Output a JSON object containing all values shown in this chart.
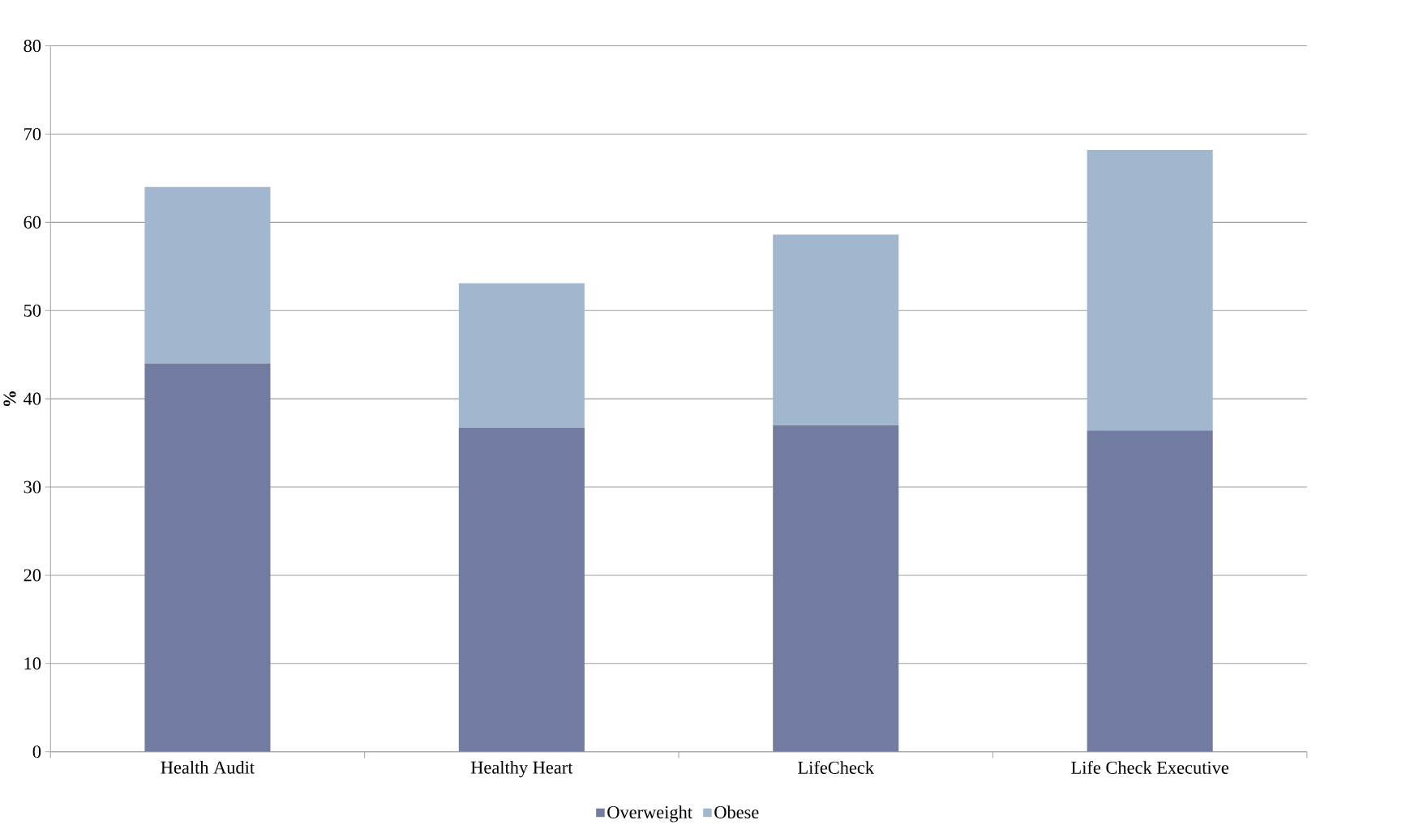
{
  "chart_data": {
    "type": "bar",
    "stacked": true,
    "ylabel": "%",
    "categories": [
      "Health Audit",
      "Healthy Heart",
      "LifeCheck",
      "Life Check Executive"
    ],
    "series": [
      {
        "name": "Overweight",
        "color": "#727ba0",
        "values": [
          44.0,
          36.7,
          37.0,
          36.4
        ]
      },
      {
        "name": "Obese",
        "color": "#a1b7cd",
        "values": [
          20.0,
          16.4,
          21.6,
          31.8
        ]
      }
    ],
    "ylim": [
      0,
      80
    ],
    "yticks": [
      0,
      10,
      20,
      30,
      40,
      50,
      60,
      70,
      80
    ],
    "grid": "y",
    "legend": "bottom"
  }
}
